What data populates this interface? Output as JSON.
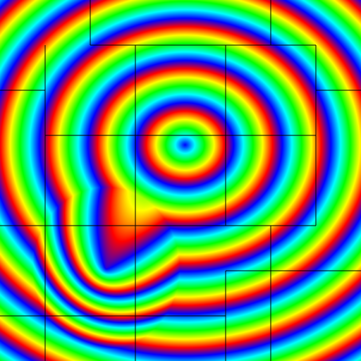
{
  "view": {
    "kind": "false-color contour field with quadtree grid overlay",
    "palette": [
      "#0000ff",
      "#00ffff",
      "#00ff00",
      "#ffff00",
      "#ff0000"
    ],
    "grid_line_color": "#000000"
  }
}
